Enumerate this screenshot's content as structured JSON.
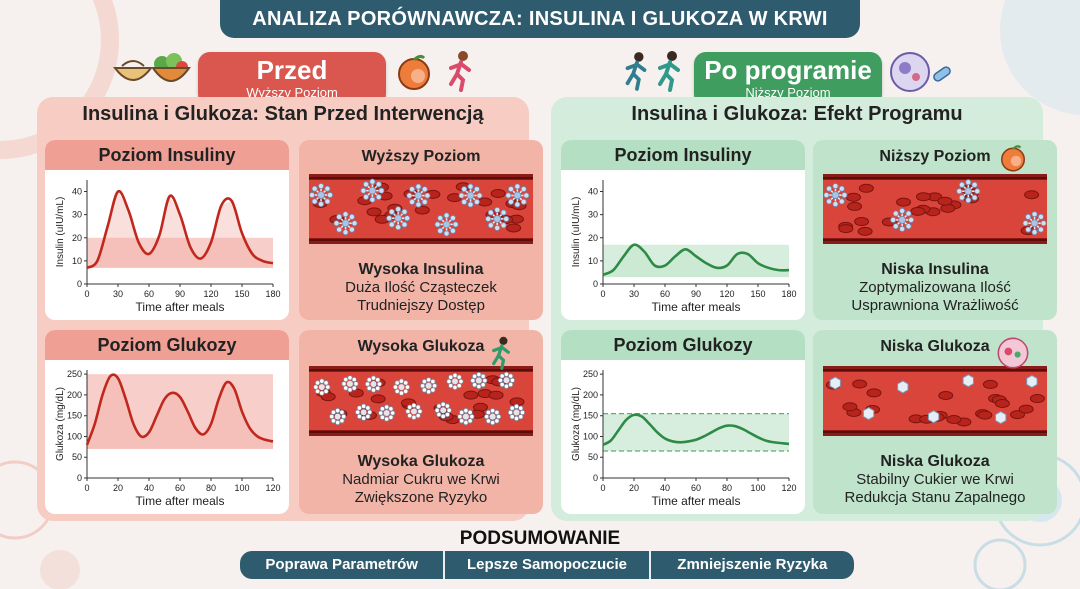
{
  "title": "ANALIZA PORÓWNAWCZA: INSULINA I GLUKOZA W KRWI",
  "colors": {
    "header": "#2f5b6e",
    "before": "#d9574e",
    "after": "#3e9d5f",
    "before_line": "#c0281e",
    "after_line": "#2e8b45"
  },
  "before": {
    "label": "Przed",
    "sublabel": "Wyższy Poziom",
    "panel_title": "Insulina i Glukoza: Stan Przed Interwencją",
    "insulin_chart_title": "Poziom Insuliny",
    "glucose_chart_title": "Poziom Glukozy",
    "insulin_card": {
      "title": "Wyższy Poziom",
      "line1": "Wysoka Insulina",
      "line2": "Duża Ilość Cząsteczek",
      "line3": "Trudniejszy Dostęp"
    },
    "glucose_card": {
      "title": "Wysoka Glukoza",
      "line1": "Wysoka Glukoza",
      "line2": "Nadmiar Cukru we Krwi",
      "line3": "Zwiększone Ryzyko"
    }
  },
  "after": {
    "label": "Po programie",
    "sublabel": "Niższy Poziom",
    "panel_title": "Insulina i Glukoza: Efekt Programu",
    "insulin_chart_title": "Poziom Insuliny",
    "glucose_chart_title": "Poziom Glukozy",
    "insulin_card": {
      "title": "Niższy Poziom",
      "line1": "Niska Insulina",
      "line2": "Zoptymalizowana Ilość",
      "line3": "Usprawniona Wrażliwość"
    },
    "glucose_card": {
      "title": "Niska Glukoza",
      "line1": "Niska Glukoza",
      "line2": "Stabilny Cukier we Krwi",
      "line3": "Redukcja Stanu Zapalnego"
    }
  },
  "summary": {
    "title": "PODSUMOWANIE",
    "items": [
      "Poprawa Parametrów",
      "Lepsze Samopoczucie",
      "Zmniejszenie Ryzyka"
    ]
  },
  "chart_data": [
    {
      "id": "before-insulin",
      "type": "line",
      "xlabel": "Time after meals",
      "ylabel": "Insulin (uIU/mL)",
      "xticks": [
        0,
        30,
        60,
        90,
        120,
        150,
        180
      ],
      "yticks": [
        0,
        10,
        20,
        30,
        40
      ],
      "xlim": [
        0,
        180
      ],
      "ylim": [
        0,
        45
      ],
      "band": [
        7,
        20
      ],
      "dashed_band": false,
      "x": [
        0,
        10,
        20,
        30,
        40,
        50,
        60,
        70,
        80,
        90,
        100,
        110,
        120,
        130,
        140,
        150,
        160,
        170,
        180
      ],
      "y": [
        7,
        10,
        25,
        40,
        32,
        18,
        13,
        21,
        38,
        30,
        16,
        11,
        18,
        34,
        36,
        22,
        13,
        10,
        9
      ]
    },
    {
      "id": "after-insulin",
      "type": "line",
      "xlabel": "Time after meals",
      "ylabel": "Insulin (uIU/mL)",
      "xticks": [
        0,
        30,
        60,
        90,
        120,
        150,
        180
      ],
      "yticks": [
        0,
        10,
        20,
        30,
        40
      ],
      "xlim": [
        0,
        180
      ],
      "ylim": [
        0,
        45
      ],
      "band": [
        3,
        17
      ],
      "dashed_band": false,
      "x": [
        0,
        10,
        20,
        30,
        40,
        50,
        60,
        70,
        80,
        90,
        100,
        110,
        120,
        130,
        140,
        150,
        160,
        170,
        180
      ],
      "y": [
        4,
        6,
        12,
        17,
        14,
        8,
        8,
        12,
        15,
        12,
        9,
        7,
        8,
        13,
        13,
        9,
        7,
        6,
        6
      ]
    },
    {
      "id": "before-glucose",
      "type": "line",
      "xlabel": "Time after meals",
      "ylabel": "Glukoza (mg/dL)",
      "xticks": [
        0,
        20,
        40,
        60,
        80,
        100,
        120
      ],
      "yticks": [
        0,
        50,
        100,
        150,
        200,
        250
      ],
      "xlim": [
        0,
        120
      ],
      "ylim": [
        0,
        260
      ],
      "band": [
        70,
        250
      ],
      "dashed_band": false,
      "x": [
        0,
        5,
        10,
        15,
        20,
        25,
        30,
        35,
        40,
        45,
        50,
        55,
        60,
        65,
        70,
        75,
        80,
        85,
        90,
        95,
        100,
        105,
        110,
        115,
        120
      ],
      "y": [
        80,
        130,
        200,
        245,
        240,
        190,
        130,
        100,
        110,
        150,
        190,
        205,
        195,
        160,
        120,
        105,
        130,
        190,
        230,
        215,
        160,
        120,
        100,
        92,
        88
      ]
    },
    {
      "id": "after-glucose",
      "type": "line",
      "xlabel": "Time after meals",
      "ylabel": "Glukoza (mg/dL)",
      "xticks": [
        0,
        20,
        40,
        60,
        80,
        100,
        120
      ],
      "yticks": [
        0,
        50,
        100,
        150,
        200,
        250
      ],
      "xlim": [
        0,
        120
      ],
      "ylim": [
        0,
        260
      ],
      "band": [
        65,
        155
      ],
      "dashed_band": true,
      "x": [
        0,
        5,
        10,
        15,
        20,
        25,
        30,
        35,
        40,
        45,
        50,
        55,
        60,
        65,
        70,
        75,
        80,
        85,
        90,
        95,
        100,
        105,
        110,
        115,
        120
      ],
      "y": [
        80,
        90,
        115,
        140,
        152,
        148,
        130,
        110,
        95,
        88,
        86,
        88,
        92,
        100,
        110,
        120,
        126,
        125,
        118,
        108,
        98,
        90,
        86,
        84,
        82
      ]
    }
  ]
}
